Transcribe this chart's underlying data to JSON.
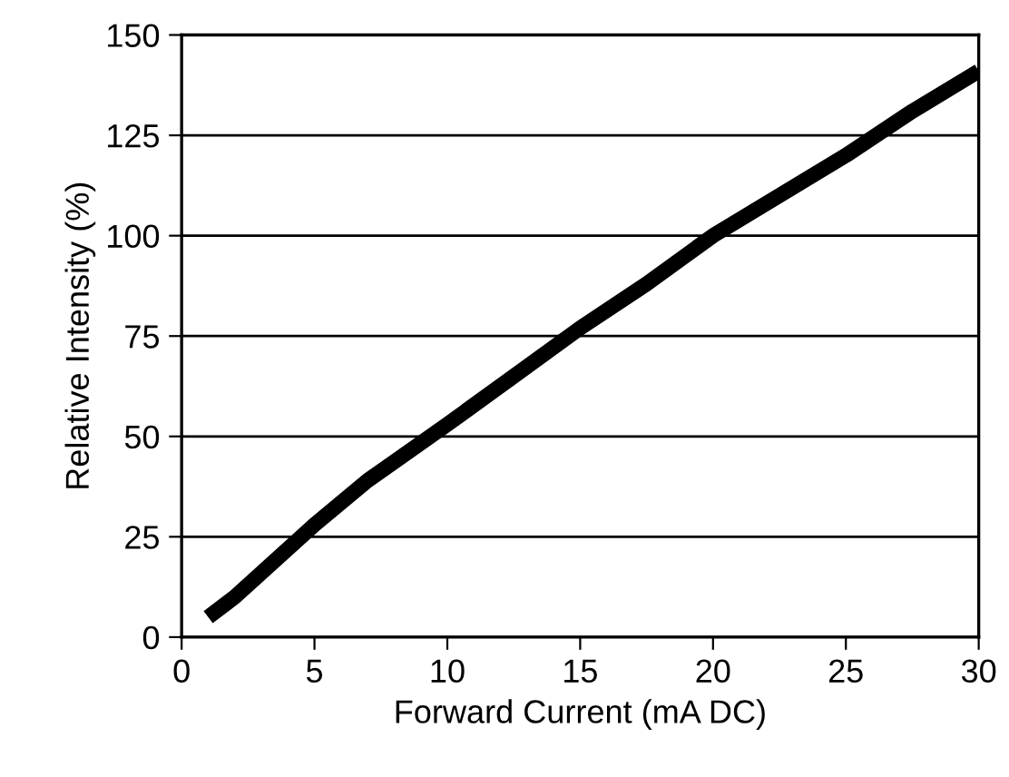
{
  "chart_data": {
    "type": "line",
    "xlabel": "Forward Current (mA DC)",
    "ylabel": "Relative Intensity (%)",
    "x": [
      1,
      2,
      3,
      5,
      7,
      10,
      12.5,
      15,
      17.5,
      20,
      22.5,
      25,
      27.5,
      30
    ],
    "series": [
      {
        "color": "#000000",
        "values": [
          5,
          10,
          16,
          28,
          39,
          53,
          65,
          77,
          88,
          100,
          110,
          120,
          131,
          141
        ]
      }
    ],
    "xlim": [
      0,
      30
    ],
    "ylim": [
      0,
      150
    ],
    "xticks": [
      0,
      5,
      10,
      15,
      20,
      25,
      30
    ],
    "yticks": [
      0,
      25,
      50,
      75,
      100,
      125,
      150
    ],
    "grid": "y",
    "legend": false,
    "marker": "none",
    "line_style": "solid"
  }
}
